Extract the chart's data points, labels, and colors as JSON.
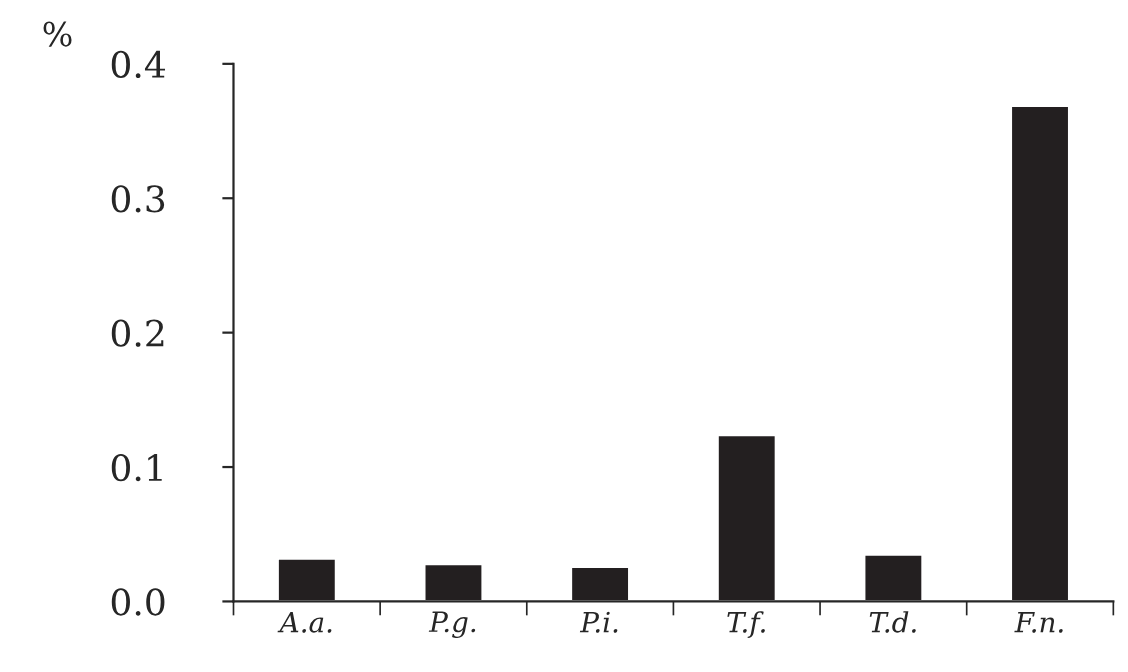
{
  "chart_data": {
    "type": "bar",
    "ylabel": "%",
    "categories": [
      "A.a.",
      "P.g.",
      "P.i.",
      "T.f.",
      "T.d.",
      "F.n."
    ],
    "values": [
      0.032,
      0.028,
      0.026,
      0.124,
      0.035,
      0.369
    ],
    "color": "#231f20",
    "ylim": [
      0,
      0.4
    ],
    "yticks": [
      {
        "value": 0,
        "label": "0.0"
      },
      0.1,
      0.2,
      0.3,
      0.4
    ],
    "grid": false
  }
}
